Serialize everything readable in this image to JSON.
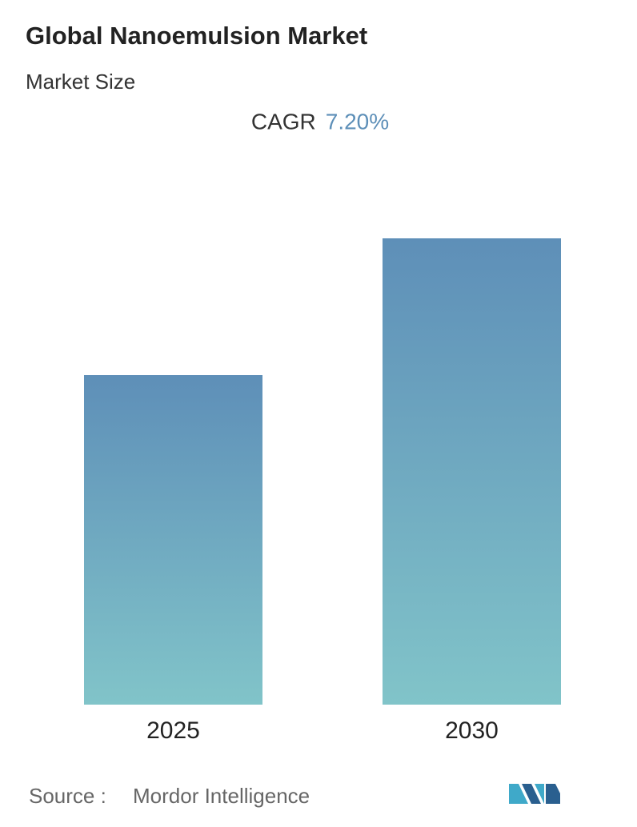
{
  "chart_data": {
    "type": "bar",
    "title": "Global Nanoemulsion Market",
    "subtitle": "Market Size",
    "cagr_label": "CAGR",
    "cagr_value": "7.20%",
    "categories": [
      "2025",
      "2030"
    ],
    "values": [
      41.2,
      58.3
    ],
    "gradient": [
      "#5e8fb8",
      "#81c4c9"
    ],
    "ylim": [
      0,
      60
    ],
    "source_label": "Source :",
    "source": "Mordor Intelligence"
  }
}
